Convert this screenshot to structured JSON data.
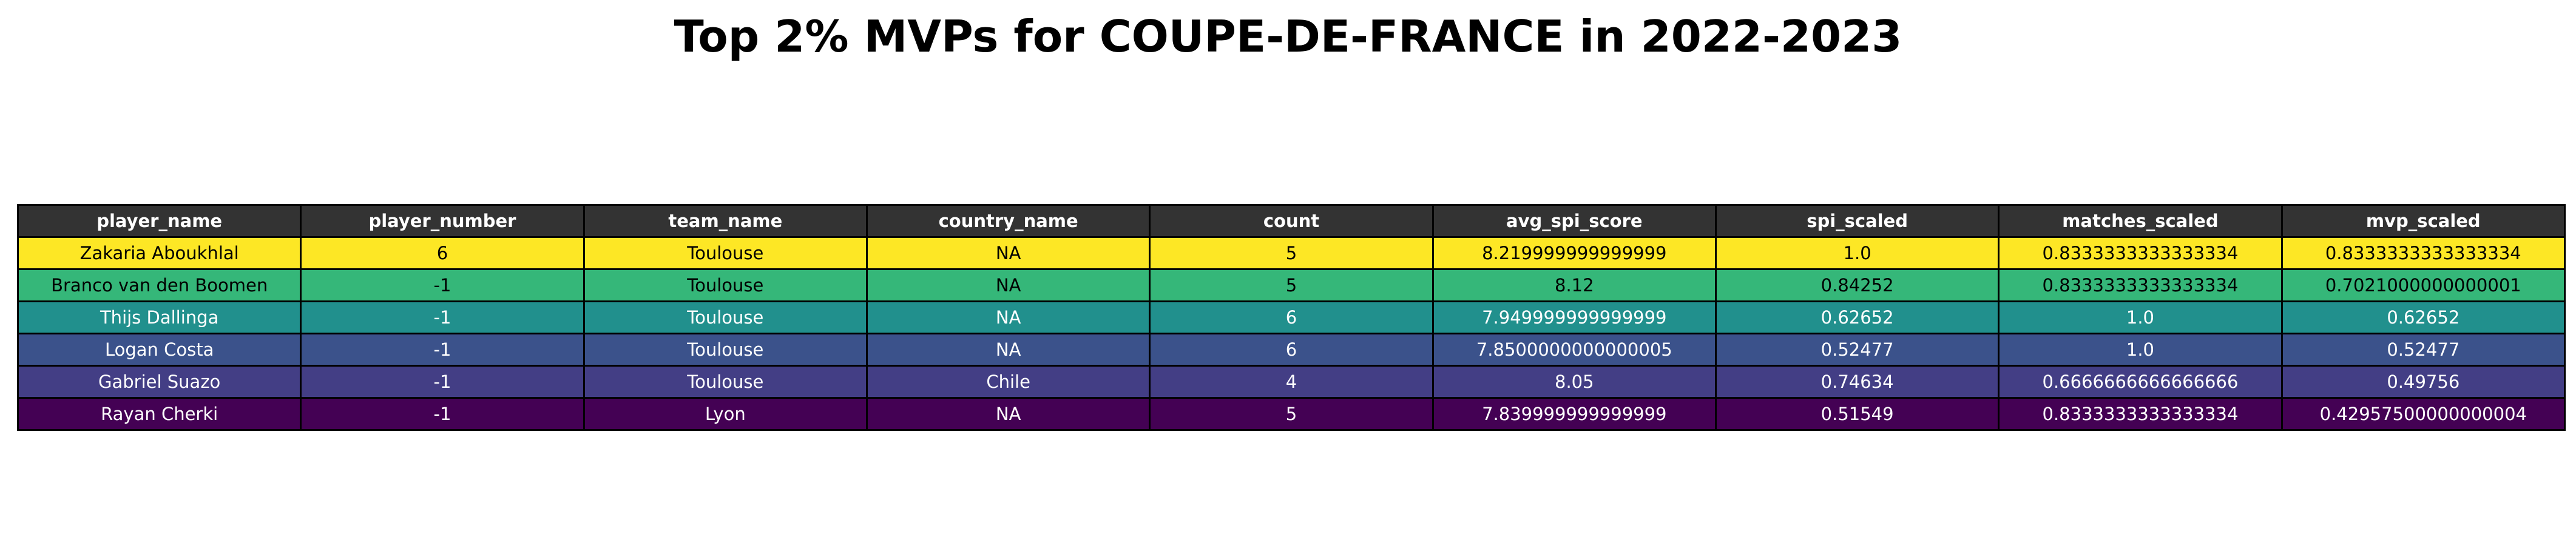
{
  "chart_data": {
    "type": "table",
    "title": "Top 2% MVPs for COUPE-DE-FRANCE in 2022-2023",
    "header_color": "#333333",
    "columns": [
      "player_name",
      "player_number",
      "team_name",
      "country_name",
      "count",
      "avg_spi_score",
      "spi_scaled",
      "matches_scaled",
      "mvp_scaled"
    ],
    "rows": [
      {
        "color": "#fde725",
        "text_color": "#000000",
        "cells": [
          "Zakaria Aboukhlal",
          "6",
          "Toulouse",
          "NA",
          "5",
          "8.219999999999999",
          "1.0",
          "0.8333333333333334",
          "0.8333333333333334"
        ]
      },
      {
        "color": "#35b779",
        "text_color": "#000000",
        "cells": [
          "Branco van den Boomen",
          "-1",
          "Toulouse",
          "NA",
          "5",
          "8.12",
          "0.84252",
          "0.8333333333333334",
          "0.7021000000000001"
        ]
      },
      {
        "color": "#21908d",
        "text_color": "#ffffff",
        "cells": [
          "Thijs Dallinga",
          "-1",
          "Toulouse",
          "NA",
          "6",
          "7.949999999999999",
          "0.62652",
          "1.0",
          "0.62652"
        ]
      },
      {
        "color": "#3b528b",
        "text_color": "#ffffff",
        "cells": [
          "Logan Costa",
          "-1",
          "Toulouse",
          "NA",
          "6",
          "7.8500000000000005",
          "0.52477",
          "1.0",
          "0.52477"
        ]
      },
      {
        "color": "#433e85",
        "text_color": "#ffffff",
        "cells": [
          "Gabriel Suazo",
          "-1",
          "Toulouse",
          "Chile",
          "4",
          "8.05",
          "0.74634",
          "0.6666666666666666",
          "0.49756"
        ]
      },
      {
        "color": "#440154",
        "text_color": "#ffffff",
        "cells": [
          "Rayan Cherki",
          "-1",
          "Lyon",
          "NA",
          "5",
          "7.839999999999999",
          "0.51549",
          "0.8333333333333334",
          "0.42957500000000004"
        ]
      }
    ]
  }
}
